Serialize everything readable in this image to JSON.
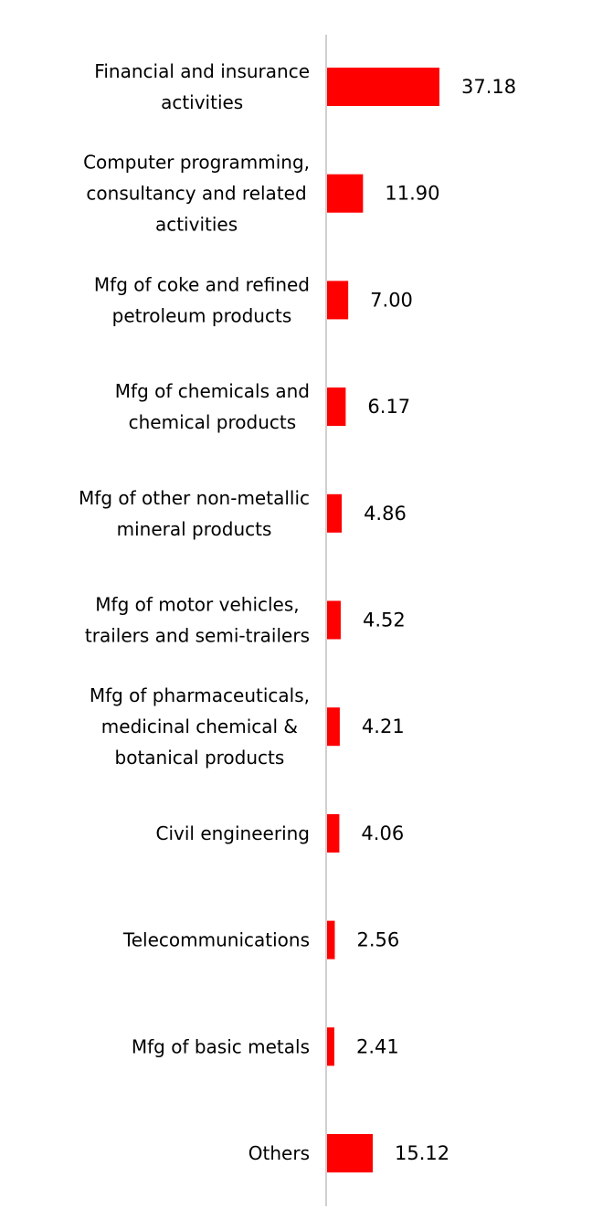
{
  "chart_data": {
    "type": "bar",
    "orientation": "horizontal",
    "title": "",
    "xlabel": "",
    "ylabel": "",
    "grid": false,
    "legend": "none",
    "bar_color": "#ff0000",
    "axis_color": "#d0d0d0",
    "xlim": [
      0,
      37.18
    ],
    "categories": [
      "Financial and insurance activities",
      "Computer programming, consultancy and related activities",
      "Mfg of coke and refined petroleum products",
      "Mfg of chemicals and chemical products",
      "Mfg of other non-metallic mineral products",
      "Mfg of motor vehicles, trailers and semi-trailers",
      "Mfg of pharmaceuticals, medicinal chemical & botanical products",
      "Civil engineering",
      "Telecommunications",
      "Mfg of basic metals",
      "Others"
    ],
    "label_lines": [
      [
        "Financial and insurance",
        "activities"
      ],
      [
        "Computer programming,",
        "consultancy and related",
        "activities"
      ],
      [
        "Mfg of coke and refined",
        "petroleum products"
      ],
      [
        "Mfg of chemicals and",
        "chemical products"
      ],
      [
        "Mfg of other non-metallic",
        "mineral products"
      ],
      [
        "Mfg of motor vehicles,",
        "trailers and semi-trailers"
      ],
      [
        "Mfg of pharmaceuticals,",
        "medicinal chemical &",
        "botanical products"
      ],
      [
        "Civil engineering"
      ],
      [
        "Telecommunications"
      ],
      [
        "Mfg of basic metals"
      ],
      [
        "Others"
      ]
    ],
    "values": [
      37.18,
      11.9,
      7.0,
      6.17,
      4.86,
      4.52,
      4.21,
      4.06,
      2.56,
      2.41,
      15.12
    ],
    "value_labels": [
      "37.18",
      "11.90",
      "7.00",
      "6.17",
      "4.86",
      "4.52",
      "4.21",
      "4.06",
      "2.56",
      "2.41",
      "15.12"
    ]
  }
}
